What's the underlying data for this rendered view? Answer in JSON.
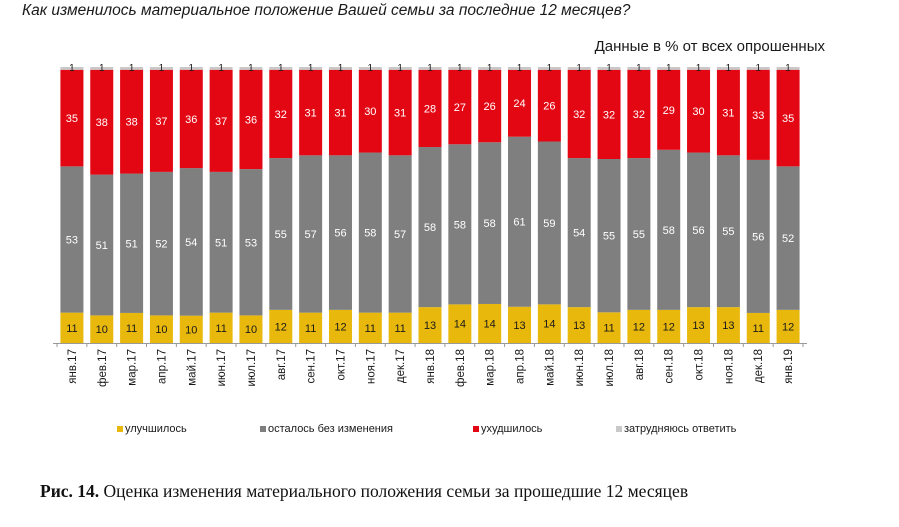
{
  "header": {
    "question": "Как изменилось материальное положение Вашей семьи за последние 12 месяцев?",
    "units_note": "Данные в % от всех опрошенных"
  },
  "caption": {
    "label": "Рис. 14.",
    "text": "Оценка изменения материального положения семьи за прошедшие 12 месяцев"
  },
  "colors": {
    "improved": "#e8b80c",
    "unchanged": "#7f7f7f",
    "worsened": "#e30613",
    "hard_to_say": "#c8c8c8"
  },
  "chart_data": {
    "type": "bar",
    "stacked": true,
    "normalized": true,
    "categories": [
      "янв.17",
      "фев.17",
      "мар.17",
      "апр.17",
      "май.17",
      "июн.17",
      "июл.17",
      "авг.17",
      "сен.17",
      "окт.17",
      "ноя.17",
      "дек.17",
      "янв.18",
      "фев.18",
      "мар.18",
      "апр.18",
      "май.18",
      "июн.18",
      "июл.18",
      "авг.18",
      "сен.18",
      "окт.18",
      "ноя.18",
      "дек.18",
      "янв.19"
    ],
    "series": [
      {
        "name": "улучшилось",
        "color": "#e8b80c",
        "values": [
          11,
          10,
          11,
          10,
          10,
          11,
          10,
          12,
          11,
          12,
          11,
          11,
          13,
          14,
          14,
          13,
          14,
          13,
          11,
          12,
          12,
          13,
          13,
          11,
          12
        ]
      },
      {
        "name": "осталось без изменения",
        "color": "#7f7f7f",
        "values": [
          53,
          51,
          51,
          52,
          54,
          51,
          53,
          55,
          57,
          56,
          58,
          57,
          58,
          58,
          58,
          61,
          59,
          54,
          55,
          55,
          58,
          56,
          55,
          56,
          52
        ]
      },
      {
        "name": "ухудшилось",
        "color": "#e30613",
        "values": [
          35,
          38,
          38,
          37,
          36,
          37,
          36,
          32,
          31,
          31,
          30,
          31,
          28,
          27,
          26,
          24,
          26,
          32,
          32,
          32,
          29,
          30,
          31,
          33,
          35
        ]
      },
      {
        "name": "затрудняюсь ответить",
        "color": "#c8c8c8",
        "values": [
          1,
          1,
          1,
          1,
          1,
          1,
          1,
          1,
          1,
          1,
          1,
          1,
          1,
          1,
          1,
          1,
          1,
          1,
          1,
          1,
          1,
          1,
          1,
          1,
          1
        ]
      }
    ],
    "legend_position": "bottom",
    "grid": false
  }
}
